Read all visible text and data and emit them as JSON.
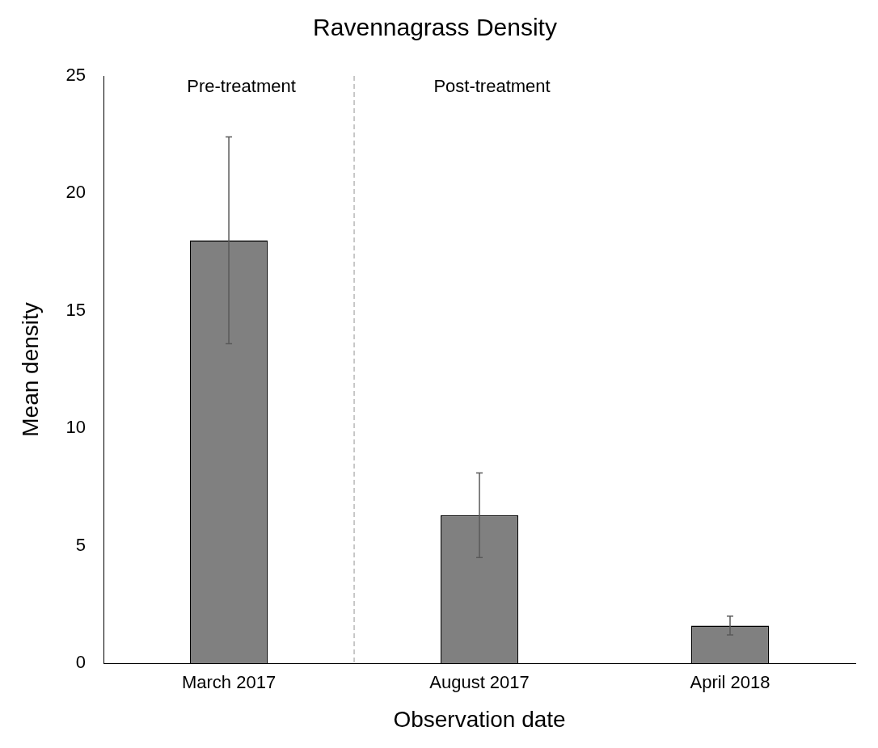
{
  "chart_data": {
    "type": "bar",
    "title": "Ravennagrass Density",
    "xlabel": "Observation date",
    "ylabel": "Mean density",
    "categories": [
      "March 2017",
      "August 2017",
      "April 2018"
    ],
    "values": [
      18,
      6.3,
      1.6
    ],
    "errors": [
      4.4,
      1.8,
      0.4
    ],
    "color": "#808080",
    "ylim": [
      0,
      25
    ],
    "yticks": [
      0,
      5,
      10,
      15,
      20,
      25
    ],
    "grid": false,
    "legend": false,
    "annotations": [
      "Pre-treatment",
      "Post-treatment"
    ]
  }
}
